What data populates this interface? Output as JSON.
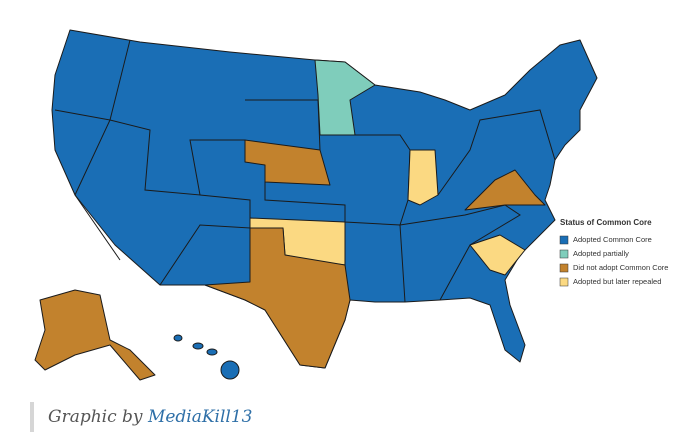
{
  "legend": {
    "title": "Status of Common Core",
    "items": [
      {
        "label": "Adopted Common Core",
        "color": "#1a6eb5"
      },
      {
        "label": "Adopted partially",
        "color": "#7fcdbb"
      },
      {
        "label": "Did not adopt Common Core",
        "color": "#c2822d"
      },
      {
        "label": "Adopted but later repealed",
        "color": "#fbd982"
      }
    ]
  },
  "caption": {
    "prefix": "Graphic by",
    "link": "MediaKill13"
  }
}
